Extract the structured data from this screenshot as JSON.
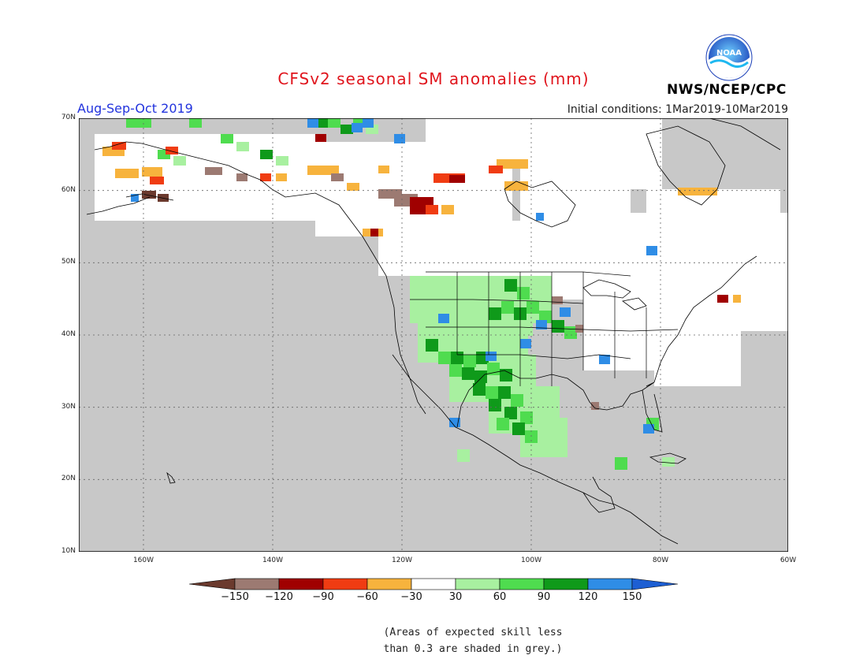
{
  "title": "CFSv2 seasonal SM anomalies (mm)",
  "period": "Aug-Sep-Oct 2019",
  "initial_conditions": "Initial conditions: 1Mar2019-10Mar2019",
  "agency": "NWS/NCEP/CPC",
  "logo_text": "NOAA",
  "lat_labels": [
    "70N",
    "60N",
    "50N",
    "40N",
    "30N",
    "20N",
    "10N"
  ],
  "lon_labels": [
    "160W",
    "140W",
    "120W",
    "100W",
    "80W",
    "60W"
  ],
  "colorbar": {
    "ticks": [
      "−150",
      "−120",
      "−90",
      "−60",
      "−30",
      "30",
      "60",
      "90",
      "120",
      "150"
    ],
    "colors": [
      "#6b3a2e",
      "#9c7a72",
      "#a00000",
      "#f03c12",
      "#f7b33d",
      "#ffffff",
      "#a8f0a0",
      "#4fdc4f",
      "#0f9a1a",
      "#2f8de6",
      "#1d5fd3"
    ]
  },
  "note_line1": "(Areas of expected skill less",
  "note_line2": "than 0.3 are shaded in grey.)",
  "colors": {
    "title": "#e0151d",
    "period": "#2233dd",
    "no_skill_grey": "#c8c8c8"
  }
}
